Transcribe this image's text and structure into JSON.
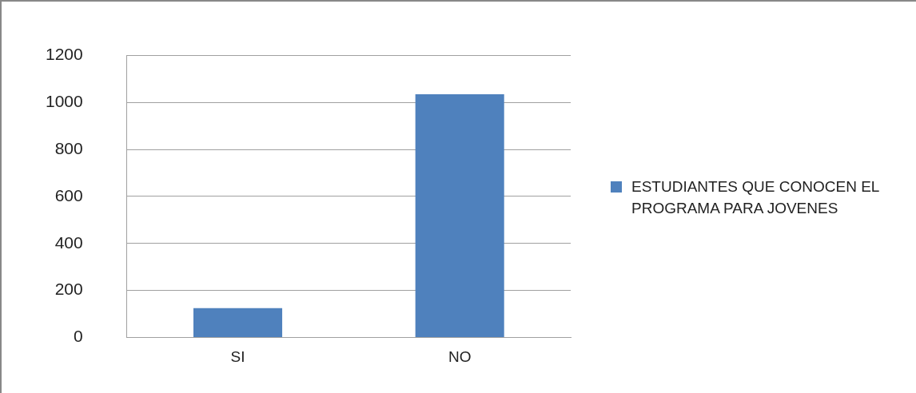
{
  "chart_data": {
    "type": "bar",
    "categories": [
      "SI",
      "NO"
    ],
    "series": [
      {
        "name": "ESTUDIANTES QUE CONOCEN EL PROGRAMA PARA JOVENES",
        "color": "#4f81bd",
        "values": [
          125,
          1035
        ]
      }
    ],
    "ylim": [
      0,
      1200
    ],
    "yticks": [
      0,
      200,
      400,
      600,
      800,
      1000,
      1200
    ],
    "grid": "y",
    "legend": "right"
  }
}
